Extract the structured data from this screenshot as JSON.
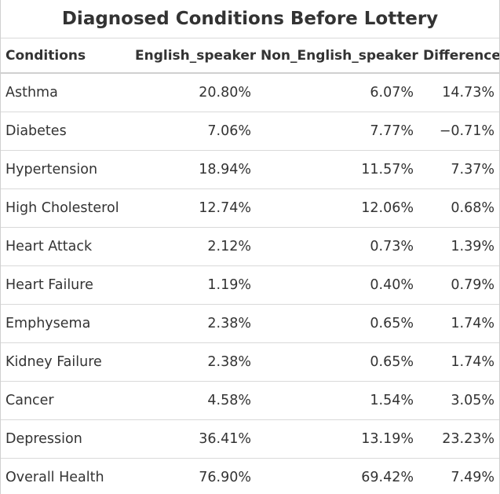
{
  "table": {
    "title": "Diagnosed Conditions Before Lottery",
    "columns": [
      "Conditions",
      "English_speaker",
      "Non_English_speaker",
      "Difference"
    ],
    "rows": [
      [
        "Asthma",
        "20.80%",
        "6.07%",
        "14.73%"
      ],
      [
        "Diabetes",
        "7.06%",
        "7.77%",
        "−0.71%"
      ],
      [
        "Hypertension",
        "18.94%",
        "11.57%",
        "7.37%"
      ],
      [
        "High Cholesterol",
        "12.74%",
        "12.06%",
        "0.68%"
      ],
      [
        "Heart Attack",
        "2.12%",
        "0.73%",
        "1.39%"
      ],
      [
        "Heart Failure",
        "1.19%",
        "0.40%",
        "0.79%"
      ],
      [
        "Emphysema",
        "2.38%",
        "0.65%",
        "1.74%"
      ],
      [
        "Kidney Failure",
        "2.38%",
        "0.65%",
        "1.74%"
      ],
      [
        "Cancer",
        "4.58%",
        "1.54%",
        "3.05%"
      ],
      [
        "Depression",
        "36.41%",
        "13.19%",
        "23.23%"
      ],
      [
        "Overall Health",
        "76.90%",
        "69.42%",
        "7.49%"
      ]
    ]
  }
}
